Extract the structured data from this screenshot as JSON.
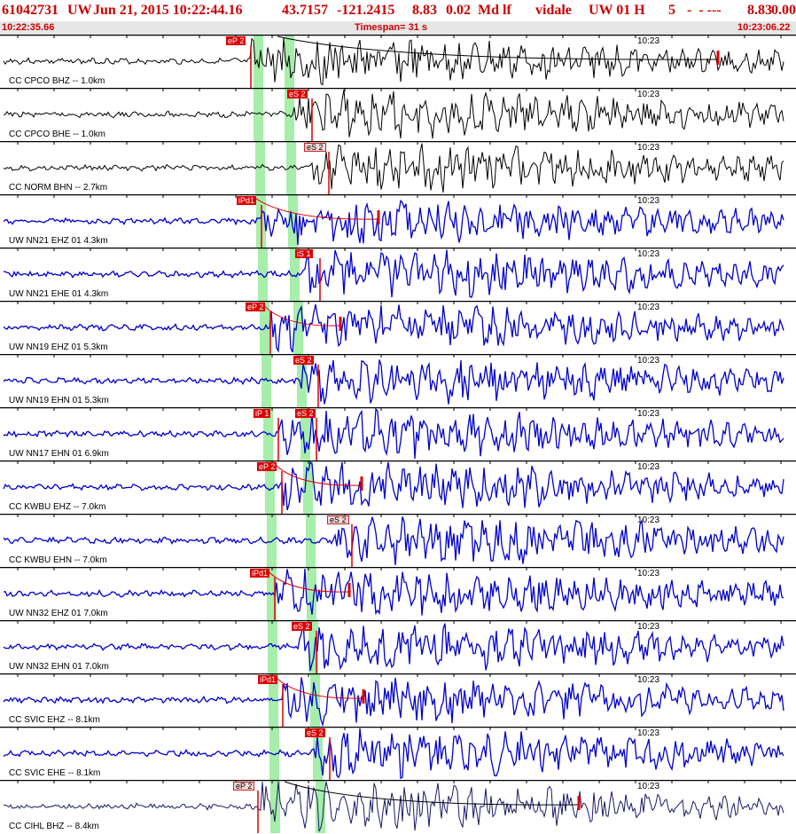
{
  "header": {
    "event_id": "61042731",
    "network": "UW",
    "datetime": "Jun 21, 2015 10:22:44.16",
    "lat": "43.7157",
    "lon": "-121.2415",
    "magnitude": "8.83",
    "mag_err": "0.02",
    "mag_type": "Md lf",
    "analyst": "vidale",
    "source": "UW 01 H",
    "field_5": "5",
    "dashes": "-  - ---",
    "mag_repeat": "8.83",
    "trailing": "0.00"
  },
  "timebar": {
    "start": "10:22:35.66",
    "span": "Timespan=  31 s",
    "end": "10:23:06.22"
  },
  "colors": {
    "title_red": "#cc0000",
    "pick_red": "#dd0000",
    "window_green": "#a6eeaa",
    "trace_blue": "#0000cc",
    "trace_black": "#000000",
    "trace_navy": "#1a1a66",
    "subbar_gray": "#e6e6e6"
  },
  "tick_label": "10:23",
  "traces": [
    {
      "label": "CC CPCO BHZ -- 1.0km",
      "pick": "eP 2",
      "pick_style": "sel",
      "color": "black"
    },
    {
      "label": "CC CPCO BHE -- 1.0km",
      "pick": "eS 2",
      "pick_style": "sel",
      "color": "black"
    },
    {
      "label": "CC NORM BHN -- 2.7km",
      "pick": "eS 2",
      "pick_style": "uns",
      "color": "black"
    },
    {
      "label": "UW NN21 EHZ 01 4.3km",
      "pick": "iPd1",
      "pick_style": "sel",
      "color": "blue"
    },
    {
      "label": "UW NN21 EHE 01 4.3km",
      "pick": "iS 1",
      "pick_style": "sel",
      "color": "blue"
    },
    {
      "label": "UW NN19 EHZ 01 5.3km",
      "pick": "eP 2",
      "pick_style": "sel",
      "color": "blue"
    },
    {
      "label": "UW NN19 EHN 01 5.3km",
      "pick": "eS 2",
      "pick_style": "sel",
      "color": "blue"
    },
    {
      "label": "UW NN17 EHN 01 6.9km",
      "pick": "iP 1",
      "pick_style": "sel",
      "color": "blue",
      "pick2": "eS 2"
    },
    {
      "label": "CC KWBU EHZ -- 7.0km",
      "pick": "eP 2",
      "pick_style": "sel",
      "color": "blue"
    },
    {
      "label": "CC KWBU EHN -- 7.0km",
      "pick": "eS 2",
      "pick_style": "uns",
      "color": "blue"
    },
    {
      "label": "UW NN32 EHZ 01 7.0km",
      "pick": "iPd1",
      "pick_style": "sel",
      "color": "blue"
    },
    {
      "label": "UW NN32 EHN 01 7.0km",
      "pick": "eS 2",
      "pick_style": "sel",
      "color": "blue"
    },
    {
      "label": "CC SVIC EHZ -- 8.1km",
      "pick": "iPd1",
      "pick_style": "sel",
      "color": "blue"
    },
    {
      "label": "CC SVIC EHE -- 8.1km",
      "pick": "eS 2",
      "pick_style": "sel",
      "color": "blue"
    },
    {
      "label": "CC CIHL BHZ -- 8.4km",
      "pick": "eP 2",
      "pick_style": "uns",
      "color": "navy"
    }
  ]
}
